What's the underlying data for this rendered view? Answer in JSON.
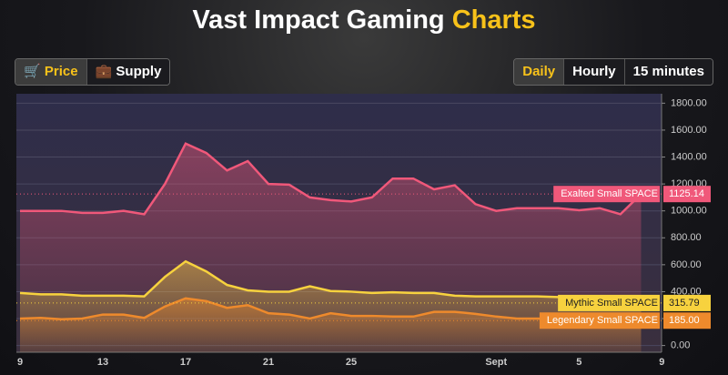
{
  "header": {
    "title": "Vast Impact Gaming",
    "highlight": "Charts"
  },
  "tabs": [
    "Price",
    "Supply"
  ],
  "ranges": [
    "Daily",
    "Hourly",
    "15 minutes"
  ],
  "chart_data": {
    "type": "line",
    "categories": [
      "9",
      null,
      null,
      null,
      "13",
      null,
      null,
      null,
      "17",
      null,
      null,
      null,
      "21",
      null,
      null,
      null,
      "25",
      null,
      null,
      null,
      null,
      null,
      null,
      "Sept",
      null,
      null,
      null,
      "5",
      null,
      null,
      null,
      "9"
    ],
    "series": [
      {
        "name": "Exalted Small SPACE",
        "color": "#f0587a",
        "values": [
          1000,
          1000,
          1000,
          985,
          985,
          1000,
          975,
          1200,
          1500,
          1430,
          1300,
          1370,
          1200,
          1195,
          1100,
          1080,
          1070,
          1100,
          1240,
          1240,
          1160,
          1190,
          1050,
          1000,
          1020,
          1020,
          1020,
          1005,
          1020,
          975,
          1125.14,
          null
        ]
      },
      {
        "name": "Mythic Small SPACE",
        "color": "#f7d23e",
        "values": [
          390,
          380,
          380,
          370,
          370,
          370,
          365,
          510,
          625,
          550,
          450,
          410,
          400,
          400,
          440,
          405,
          400,
          390,
          395,
          390,
          390,
          370,
          365,
          365,
          365,
          365,
          360,
          360,
          355,
          355,
          315.79,
          null
        ]
      },
      {
        "name": "Legendary Small SPACE",
        "color": "#ee8a2c",
        "values": [
          200,
          205,
          195,
          200,
          230,
          230,
          205,
          290,
          350,
          330,
          280,
          300,
          240,
          230,
          200,
          240,
          220,
          220,
          215,
          215,
          250,
          250,
          235,
          215,
          200,
          200,
          195,
          195,
          190,
          190,
          185,
          null
        ],
        "value_labels": [
          null,
          null,
          null,
          null,
          null,
          null,
          null,
          null,
          null,
          null,
          null,
          null,
          null,
          null,
          null,
          null,
          null,
          null,
          null,
          null,
          null,
          null,
          null,
          null,
          null,
          null,
          null,
          null,
          null,
          null,
          "185.00",
          null
        ]
      }
    ],
    "ylim": [
      -50,
      1870
    ],
    "yticks": [
      {
        "value": 0,
        "label": "0.00"
      },
      {
        "value": 200,
        "label": "200.00"
      },
      {
        "value": 400,
        "label": "400.00"
      },
      {
        "value": 600,
        "label": "600.00"
      },
      {
        "value": 800,
        "label": "800.00"
      },
      {
        "value": 1000,
        "label": "1000.00"
      },
      {
        "value": 1200,
        "label": "1200.00"
      },
      {
        "value": 1400,
        "label": "1400.00"
      },
      {
        "value": 1600,
        "label": "1600.00"
      },
      {
        "value": 1800,
        "label": "1800.00"
      }
    ],
    "grid": true
  }
}
